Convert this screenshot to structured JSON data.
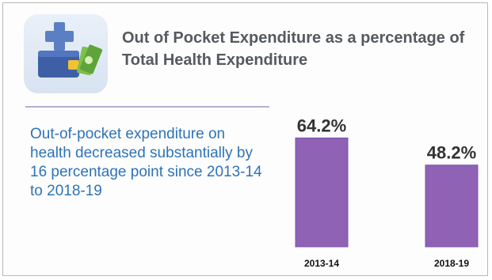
{
  "title": "Out of Pocket Expenditure as a percentage of Total Health Expenditure",
  "description": "Out-of-pocket expenditure on health decreased substantially by 16 percentage point since 2013-14 to 2018-19",
  "icon": "health-finance-icon",
  "colors": {
    "bar": "#8f62b6",
    "bar_edge": "#7e52a8",
    "description": "#2e73b8",
    "divider": "#b7afd0"
  },
  "chart_data": {
    "type": "bar",
    "categories": [
      "2013-14",
      "2018-19"
    ],
    "values": [
      64.2,
      48.2
    ],
    "value_labels": [
      "64.2%",
      "48.2%"
    ],
    "title": "",
    "xlabel": "",
    "ylabel": "",
    "ylim": [
      0,
      70
    ],
    "grid": false
  }
}
